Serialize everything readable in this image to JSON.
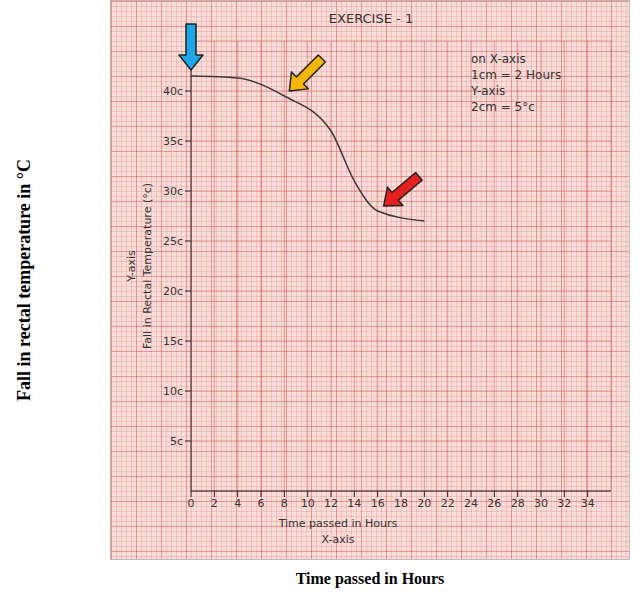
{
  "chart_data": {
    "type": "line",
    "title": "EXERCISE - 1",
    "x_label": "Time passed in Hours",
    "x_axis_name": "X-axis",
    "y_label": "Fall in Rectal Temperature (°c)",
    "y_axis_name": "Y-axis",
    "caption_x_label": "Time passed in Hours",
    "caption_y_label": "Fall in rectal temperature in °C",
    "annotations": [
      "on X-axis",
      "1cm = 2 Hours",
      "Y-axis",
      "2cm = 5°c"
    ],
    "x": [
      0,
      4,
      8,
      12,
      14,
      16,
      20
    ],
    "values": [
      41.5,
      41.3,
      39.5,
      36,
      31,
      28,
      27
    ],
    "color": "#3a3a3a",
    "marker": "none",
    "line_style": "solid",
    "xlim": [
      0,
      36
    ],
    "xticks": [
      0,
      2,
      4,
      6,
      8,
      10,
      12,
      14,
      16,
      18,
      20,
      22,
      24,
      26,
      28,
      30,
      32,
      34
    ],
    "ylim": [
      0,
      45
    ],
    "yticks": [
      {
        "value": 5,
        "label": "5c"
      },
      {
        "value": 10,
        "label": "10c"
      },
      {
        "value": 15,
        "label": "15c"
      },
      {
        "value": 20,
        "label": "20c"
      },
      {
        "value": 25,
        "label": "25c"
      },
      {
        "value": 30,
        "label": "30c"
      },
      {
        "value": 35,
        "label": "35c"
      },
      {
        "value": 40,
        "label": "40c"
      }
    ],
    "grid": true
  }
}
